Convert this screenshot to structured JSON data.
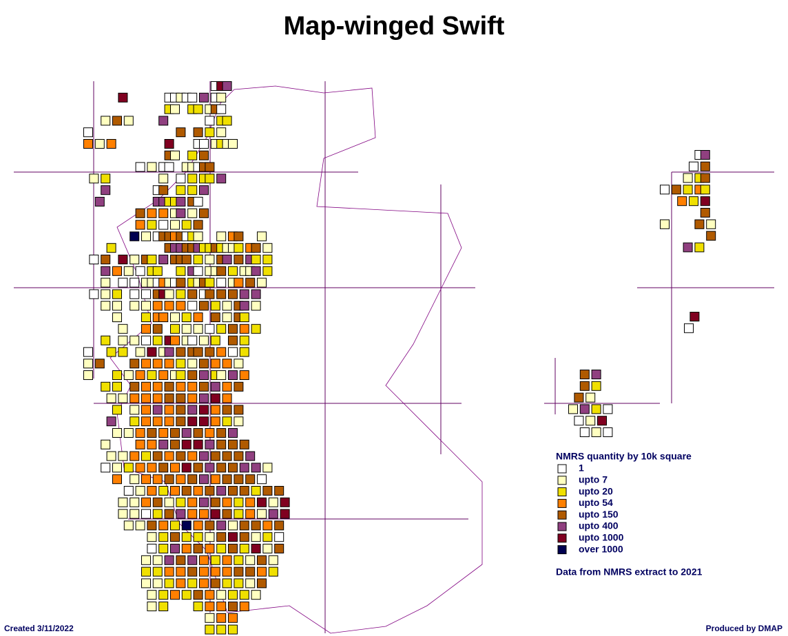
{
  "header": {
    "title": "Map-winged Swift"
  },
  "legend": {
    "title": "NMRS quantity by 10k square",
    "items": [
      {
        "label": "1",
        "color": "#ffffff"
      },
      {
        "label": "upto 7",
        "color": "#ffffc0"
      },
      {
        "label": "upto 20",
        "color": "#f0e000"
      },
      {
        "label": "upto 54",
        "color": "#ff8000"
      },
      {
        "label": "upto 150",
        "color": "#b05a00"
      },
      {
        "label": "upto 400",
        "color": "#904080"
      },
      {
        "label": "upto 1000",
        "color": "#800020"
      },
      {
        "label": "over 1000",
        "color": "#000050"
      }
    ]
  },
  "squares": {
    "main": [
      "......................065",
      "......6.......00100.5.01",
      "..............21..22.140",
      "...1.4.1.....5.......0.22",
      "0...............4..4.2.1",
      "3.1.3.........6....00.1211",
      "..............41..2.4",
      ".........0.1.00..11044",
      ".1.2.........1..0.2.22.5",
      "...5........04..2.2.5",
      "..5.........55225.40",
      ".........4.3.3.15.1.4",
      ".........3.2.0.1.2.4",
      "........7.1.04434021...1.34...1",
      "....2.........4554452242112.34.1",
      ".0.4..6.1.42.5.444.2.1.45.4.52.2",
      "...5.3.1.0.22...2.50.114.2.115.2",
      "...1..0.0.1103104.2142.0.13.4.1",
      ".0.1.2..0.0.461.2.4.04.4.4.5.5",
      "...1.1..1.1.3.3.3.0.4.2.1.45.1",
      ".....1....2.33.1.2.3..4.1.42",
      "......1...3.4..2.1.1.0.2.4.3.2",
      "...2..1.1.0.2.63.10.1.2..4.2",
      "0...2.2..1.6.15.4.44.4.3.0.2",
      "1.4.....4.3.3.3.2.1.4.3.3.1",
      "1....2.1.3.2.3.12.4.5.21.5.3",
      "...2.2..4.3.3.4.3.3.4.5.3.4",
      "....1.1.3.3.3.4.4.3.5.6.3",
      ".....2..1.3.5.3.4.5.6.3.4.4",
      "....5...2.3.3.3.4.6.6.3.2.1",
      ".....1.1.3.4.3.4.5.4.3.4.5",
      "...1.....3.3.5.4.6.6.5.4.4.4",
      "....1.1.3.2.4.3.4.3.5.4.4.4.5",
      "...0.1.2.3.3.4.3.6.4.5.4.4.5.5.1",
      ".....3..1.3.3.4.3.4.5.3.4.4.4.0",
      ".......0.1.3.2.3.4.3.4.5.4.4.2.4.4",
      "......1.1.3.4.1.2.3.5.4.3.2.3.6.1.6",
      "......1.1.0.2.4.5.3.3.6.4.2.3.1.5.6",
      ".......1.1.4.3.2.7.3.4.5.1.4.4.3.4",
      "...........1.2.4.2.2.1.4.6.4.1.2.0",
      "...........0.2.5.3.4.3.2.4.2.6.1.4",
      "..........1.1.5.4.5.3.2.3.2.1.4.1",
      "..........2.2.3.3.4.3.3.3.4.4.3.2",
      "..........1.1.2.3.2.3.4.2.2.1.4",
      "...........1.2.3.2.4.3.1.2.2.1",
      "...........1.2.....2.3.3.4.3",
      ".....................1.3.3",
      ".....................2.2.2"
    ],
    "north_isles": [
      "......05",
      ".....0.4",
      "....1.24",
      "0.4.2.32",
      "...3.2.6",
      ".......4",
      "1.....4.1",
      "........4",
      "....5.2"
    ],
    "fair_isle": [
      ".6",
      "0"
    ],
    "inset": [
      "..4.5",
      "..4.2",
      ".4.1",
      "1.5.2.0",
      ".0.1.6",
      "..0.1.0"
    ]
  },
  "footer": {
    "source": "Data from NMRS extract to 2021",
    "created": "Created 3/11/2022",
    "producer": "Produced by DMAP"
  }
}
